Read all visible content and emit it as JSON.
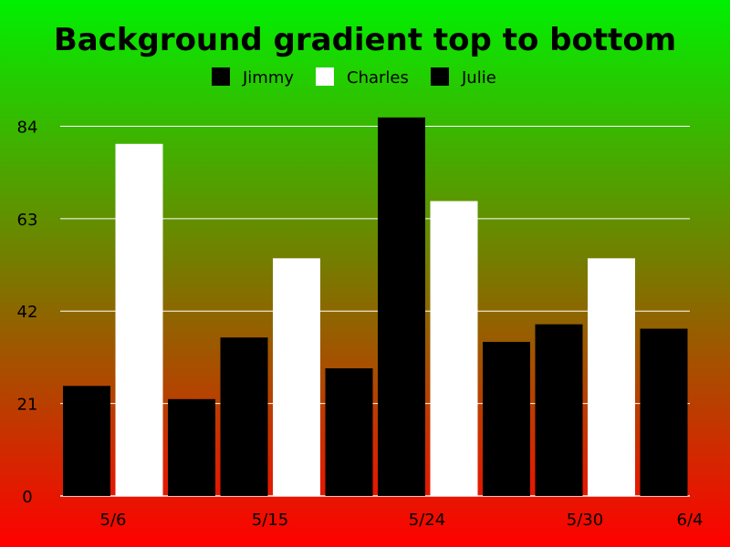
{
  "chart_data": {
    "type": "bar",
    "title": "Background gradient top to bottom",
    "ylim": [
      0,
      84
    ],
    "yticks": [
      0,
      21,
      42,
      63,
      84
    ],
    "grid": true,
    "legend_position": "top-center",
    "x_tick_labels": [
      "5/6",
      "5/15",
      "5/24",
      "5/30",
      "6/4"
    ],
    "legend": [
      {
        "name": "Jimmy",
        "color": "#000000"
      },
      {
        "name": "Charles",
        "color": "#ffffff"
      },
      {
        "name": "Julie",
        "color": "#000000"
      }
    ],
    "bars": [
      {
        "series": "Jimmy",
        "value": 25
      },
      {
        "series": "Charles",
        "value": 80
      },
      {
        "series": "Julie",
        "value": 22
      },
      {
        "series": "Jimmy",
        "value": 36
      },
      {
        "series": "Charles",
        "value": 54
      },
      {
        "series": "Julie",
        "value": 29
      },
      {
        "series": "Jimmy",
        "value": 86
      },
      {
        "series": "Charles",
        "value": 67
      },
      {
        "series": "Julie",
        "value": 35
      },
      {
        "series": "Jimmy",
        "value": 39
      },
      {
        "series": "Charles",
        "value": 54
      },
      {
        "series": "Julie",
        "value": 38
      }
    ]
  }
}
